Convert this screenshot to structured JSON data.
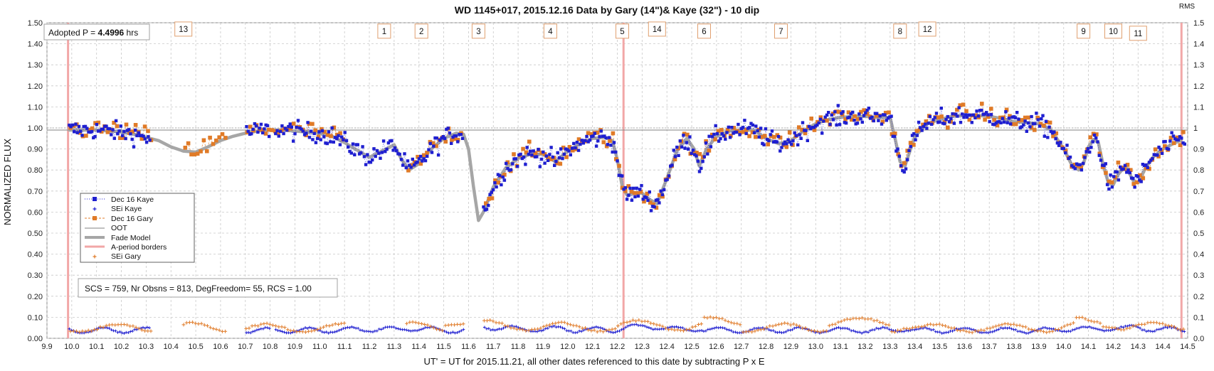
{
  "chart_data": {
    "type": "scatter",
    "title": "WD 1145+017, 2015.12.16 Data by Gary (14\")& Kaye (32\") - 10 dip",
    "xlabel": "UT' = UT for 2015.11.21, all other dates referenced to this date by subtracting P x E",
    "ylabel": "NORMALIZED FLUX",
    "y2label": "RMS",
    "xlim": [
      9.9,
      14.5
    ],
    "ylim": [
      0.0,
      1.5
    ],
    "x_ticks": [
      "9.9",
      "10.0",
      "10.1",
      "10.2",
      "10.3",
      "10.4",
      "10.5",
      "10.6",
      "10.7",
      "10.8",
      "10.9",
      "11.0",
      "11.1",
      "11.2",
      "11.3",
      "11.4",
      "11.5",
      "11.6",
      "11.7",
      "11.8",
      "11.9",
      "12.0",
      "12.1",
      "12.2",
      "12.3",
      "12.4",
      "12.5",
      "12.6",
      "12.7",
      "12.8",
      "12.9",
      "13.0",
      "13.1",
      "13.2",
      "13.3",
      "13.4",
      "13.5",
      "13.6",
      "13.7",
      "13.8",
      "13.9",
      "14.0",
      "14.1",
      "14.2",
      "14.3",
      "14.4",
      "14.5"
    ],
    "y_ticks": [
      "0.00",
      "0.10",
      "0.20",
      "0.30",
      "0.40",
      "0.50",
      "0.60",
      "0.70",
      "0.80",
      "0.90",
      "1.00",
      "1.10",
      "1.20",
      "1.30",
      "1.40",
      "1.50"
    ],
    "y2_ticks": [
      "0.0",
      "0.1",
      "0.2",
      "0.3",
      "0.4",
      "0.5",
      "0.6",
      "0.7",
      "0.8",
      "0.9",
      "1",
      "1.1",
      "1.2",
      "1.3",
      "1.4",
      "1.5"
    ],
    "grid": true,
    "legend_position": "left-middle",
    "legend": [
      "Dec 16 Kaye",
      "SEi Kaye",
      "Dec 16 Gary",
      "OOT",
      "Fade Model",
      "A-period borders",
      "SEi Gary"
    ],
    "colors": {
      "kaye": "#1f1fd0",
      "gary": "#e07b28",
      "oot": "#808080",
      "model": "#a6a6a6",
      "borders": "#f2a7a7",
      "grid": "#c8c8c8"
    },
    "annotations": {
      "adopted_prefix": "Adopted P = ",
      "adopted_value": "4.4996",
      "adopted_unit": " hrs",
      "stats": "SCS = 759,  Nr Obsns = 813, DegFreedom= 55, RCS = 1.00"
    },
    "a_period_borders": [
      9.985,
      12.225,
      14.475
    ],
    "oot_level": 0.99,
    "dip_labels": [
      {
        "label": "13",
        "x": 10.45,
        "y": 1.47
      },
      {
        "label": "1",
        "x": 11.26,
        "y": 1.46
      },
      {
        "label": "2",
        "x": 11.41,
        "y": 1.46
      },
      {
        "label": "3",
        "x": 11.64,
        "y": 1.46
      },
      {
        "label": "4",
        "x": 11.93,
        "y": 1.46
      },
      {
        "label": "5",
        "x": 12.22,
        "y": 1.46
      },
      {
        "label": "14",
        "x": 12.36,
        "y": 1.47
      },
      {
        "label": "6",
        "x": 12.55,
        "y": 1.46
      },
      {
        "label": "7",
        "x": 12.86,
        "y": 1.46
      },
      {
        "label": "8",
        "x": 13.34,
        "y": 1.46
      },
      {
        "label": "12",
        "x": 13.45,
        "y": 1.47
      },
      {
        "label": "9",
        "x": 14.08,
        "y": 1.46
      },
      {
        "label": "10",
        "x": 14.2,
        "y": 1.46
      },
      {
        "label": "11",
        "x": 14.3,
        "y": 1.45
      }
    ],
    "fade_model": {
      "x": [
        9.99,
        10.05,
        10.1,
        10.15,
        10.2,
        10.25,
        10.3,
        10.35,
        10.4,
        10.45,
        10.5,
        10.55,
        10.6,
        10.65,
        10.7,
        10.75,
        10.8,
        10.85,
        10.9,
        10.95,
        11.0,
        11.05,
        11.1,
        11.15,
        11.2,
        11.25,
        11.3,
        11.33,
        11.36,
        11.4,
        11.45,
        11.5,
        11.55,
        11.58,
        11.6,
        11.62,
        11.64,
        11.66,
        11.7,
        11.75,
        11.8,
        11.85,
        11.9,
        11.95,
        12.0,
        12.05,
        12.1,
        12.15,
        12.18,
        12.2,
        12.22,
        12.24,
        12.27,
        12.3,
        12.33,
        12.36,
        12.4,
        12.44,
        12.48,
        12.51,
        12.53,
        12.56,
        12.6,
        12.65,
        12.7,
        12.75,
        12.8,
        12.85,
        12.9,
        12.95,
        13.0,
        13.05,
        13.1,
        13.15,
        13.2,
        13.25,
        13.3,
        13.32,
        13.34,
        13.36,
        13.4,
        13.45,
        13.5,
        13.55,
        13.6,
        13.65,
        13.7,
        13.75,
        13.8,
        13.85,
        13.9,
        13.95,
        14.0,
        14.03,
        14.06,
        14.08,
        14.1,
        14.12,
        14.14,
        14.16,
        14.18,
        14.2,
        14.22,
        14.25,
        14.28,
        14.3,
        14.33,
        14.36,
        14.4,
        14.45,
        14.47
      ],
      "y": [
        0.99,
        0.99,
        0.99,
        0.985,
        0.98,
        0.97,
        0.955,
        0.94,
        0.91,
        0.89,
        0.885,
        0.91,
        0.94,
        0.96,
        0.975,
        0.985,
        0.99,
        0.99,
        0.985,
        0.98,
        0.975,
        0.96,
        0.93,
        0.895,
        0.86,
        0.89,
        0.92,
        0.85,
        0.8,
        0.83,
        0.9,
        0.95,
        0.975,
        0.97,
        0.9,
        0.72,
        0.56,
        0.6,
        0.72,
        0.81,
        0.855,
        0.875,
        0.875,
        0.84,
        0.89,
        0.925,
        0.95,
        0.955,
        0.94,
        0.85,
        0.72,
        0.68,
        0.69,
        0.69,
        0.66,
        0.64,
        0.76,
        0.89,
        0.95,
        0.9,
        0.82,
        0.9,
        0.96,
        0.985,
        0.99,
        0.99,
        0.95,
        0.925,
        0.94,
        0.985,
        1.02,
        1.04,
        1.05,
        1.055,
        1.055,
        1.05,
        1.05,
        0.95,
        0.84,
        0.82,
        0.96,
        1.02,
        1.04,
        1.055,
        1.06,
        1.06,
        1.055,
        1.045,
        1.03,
        1.025,
        1.02,
        0.99,
        0.9,
        0.83,
        0.8,
        0.83,
        0.91,
        0.945,
        0.93,
        0.82,
        0.74,
        0.73,
        0.78,
        0.82,
        0.75,
        0.74,
        0.81,
        0.86,
        0.9,
        0.93,
        0.94
      ]
    },
    "kaye_segments": [
      [
        9.99,
        10.32
      ],
      [
        10.7,
        10.8
      ],
      [
        10.82,
        11.58
      ],
      [
        11.66,
        14.5
      ]
    ],
    "gary_segments": [
      [
        9.99,
        10.32
      ],
      [
        10.45,
        10.62
      ],
      [
        10.7,
        11.1
      ],
      [
        11.35,
        11.58
      ],
      [
        11.66,
        14.5
      ]
    ],
    "kaye_rms_base": 0.035,
    "gary_rms_base": 0.045
  }
}
